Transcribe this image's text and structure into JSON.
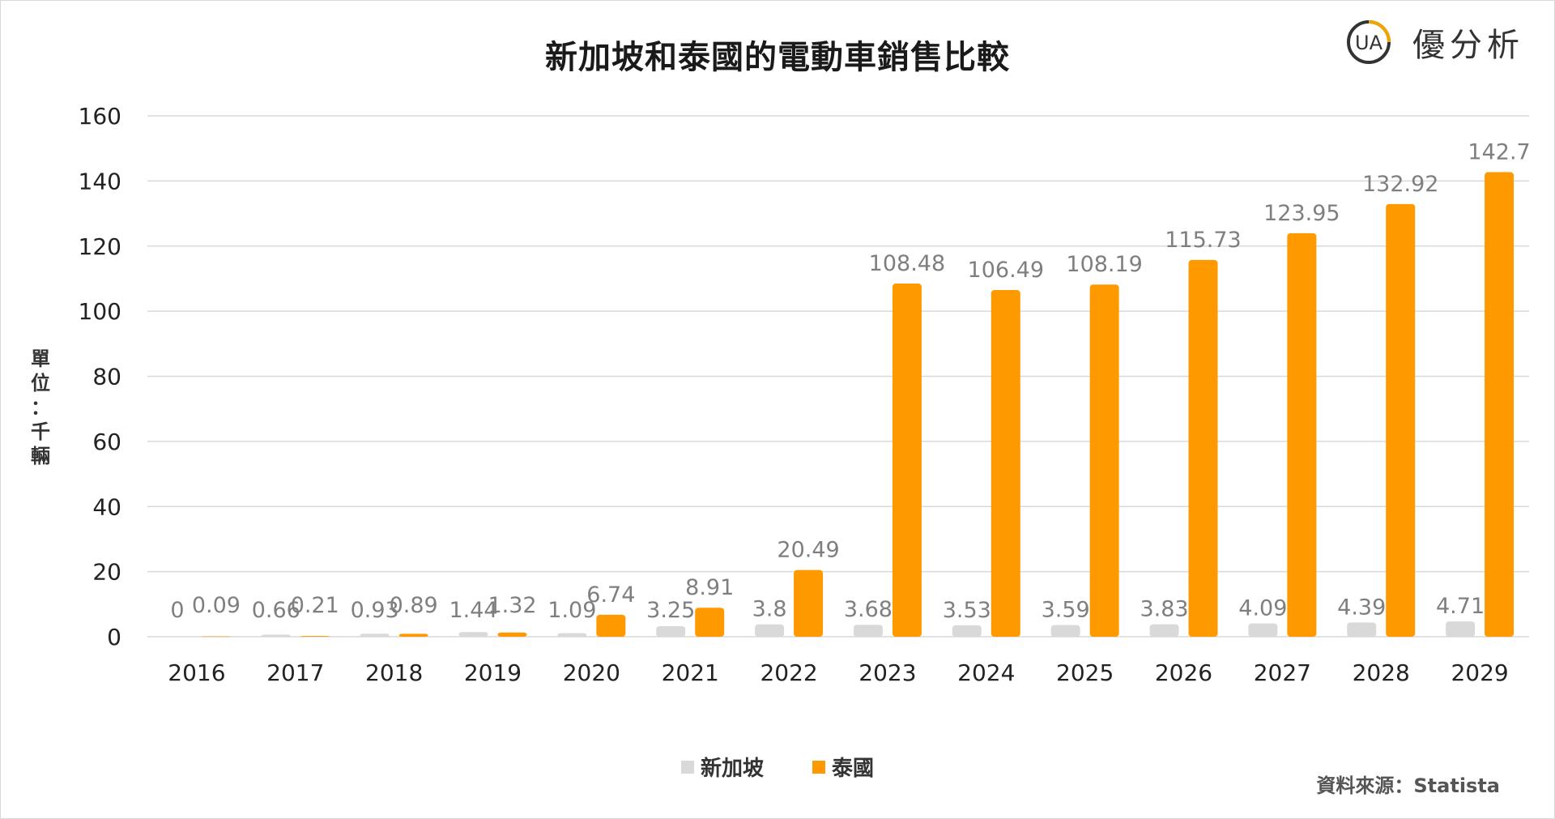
{
  "colors": {
    "singapore": "#d9d9d9",
    "thailand": "#ff9900",
    "grid": "#d9d9d9",
    "logo_dark": "#333333",
    "logo_accent": "#f0a500"
  },
  "logo": {
    "text": "優分析",
    "mark": "UA",
    "icon": "ua-logo-icon"
  },
  "source": "資料來源：Statista",
  "ylabel_chars": [
    "單",
    "位",
    "：",
    "千",
    "輛"
  ],
  "chart_data": {
    "type": "bar",
    "title": "新加坡和泰國的電動車銷售比較",
    "ylabel": "單位：千輛",
    "ylim": [
      0,
      160
    ],
    "yticks": [
      0,
      20,
      40,
      60,
      80,
      100,
      120,
      140,
      160
    ],
    "grid": true,
    "legend_position": "bottom",
    "categories": [
      "2016",
      "2017",
      "2018",
      "2019",
      "2020",
      "2021",
      "2022",
      "2023",
      "2024",
      "2025",
      "2026",
      "2027",
      "2028",
      "2029"
    ],
    "series": [
      {
        "name": "新加坡",
        "values": [
          0,
          0.66,
          0.93,
          1.44,
          1.09,
          3.25,
          3.8,
          3.68,
          3.53,
          3.59,
          3.83,
          4.09,
          4.39,
          4.71
        ]
      },
      {
        "name": "泰國",
        "values": [
          0.09,
          0.21,
          0.89,
          1.32,
          6.74,
          8.91,
          20.49,
          108.48,
          106.49,
          108.19,
          115.73,
          123.95,
          132.92,
          142.7
        ]
      }
    ]
  }
}
